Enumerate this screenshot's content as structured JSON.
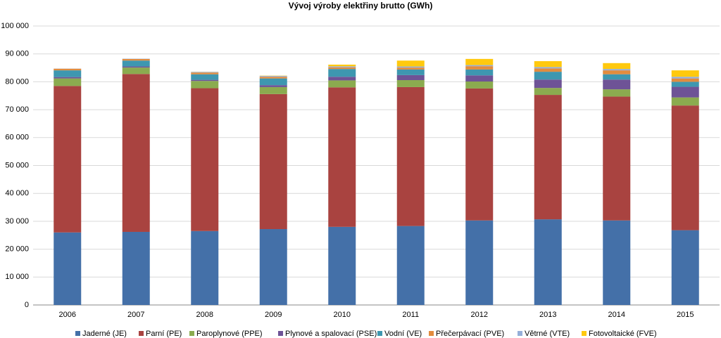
{
  "chart_data": {
    "type": "bar",
    "stacked": true,
    "title": "Vývoj výroby elektřiny brutto (GWh)",
    "xlabel": "",
    "ylabel": "",
    "ylim": [
      0,
      100000
    ],
    "yticks": [
      "0",
      "10 000",
      "20 000",
      "30 000",
      "40 000",
      "50 000",
      "60 000",
      "70 000",
      "80 000",
      "90 000",
      "100 000"
    ],
    "ytick_values": [
      0,
      10000,
      20000,
      30000,
      40000,
      50000,
      60000,
      70000,
      80000,
      90000,
      100000
    ],
    "grid": true,
    "legend_position": "bottom",
    "categories": [
      "2006",
      "2007",
      "2008",
      "2009",
      "2010",
      "2011",
      "2012",
      "2013",
      "2014",
      "2015"
    ],
    "series": [
      {
        "name": "Jaderné (JE)",
        "color": "#4470A8",
        "values": [
          26000,
          26200,
          26500,
          27200,
          28000,
          28300,
          30300,
          30700,
          30300,
          26800
        ]
      },
      {
        "name": "Parní (PE)",
        "color": "#A94340",
        "values": [
          52500,
          56600,
          51200,
          48400,
          50000,
          49800,
          47300,
          44600,
          44400,
          44700
        ]
      },
      {
        "name": "Paroplynové (PPE)",
        "color": "#8BAB4F",
        "values": [
          2700,
          2300,
          2600,
          2500,
          2500,
          2500,
          2500,
          2500,
          2600,
          2900
        ]
      },
      {
        "name": "Plynové a spalovací (PSE)",
        "color": "#6E5396",
        "values": [
          500,
          400,
          400,
          700,
          1300,
          1800,
          2200,
          3000,
          3500,
          3800
        ]
      },
      {
        "name": "Vodní (VE)",
        "color": "#3E97B0",
        "values": [
          2400,
          2100,
          2000,
          2400,
          2800,
          2000,
          2100,
          2800,
          1900,
          1800
        ]
      },
      {
        "name": "Přečerpávací (PVE)",
        "color": "#E28C3E",
        "values": [
          600,
          600,
          600,
          600,
          600,
          700,
          1200,
          1200,
          1400,
          1200
        ]
      },
      {
        "name": "Větrné (VTE)",
        "color": "#95AFD9",
        "values": [
          50,
          100,
          250,
          300,
          350,
          400,
          400,
          500,
          500,
          600
        ]
      },
      {
        "name": "Fotovoltaické (FVE)",
        "color": "#FFC90E",
        "values": [
          0,
          0,
          50,
          100,
          600,
          2100,
          2200,
          2100,
          2100,
          2300
        ]
      }
    ]
  }
}
